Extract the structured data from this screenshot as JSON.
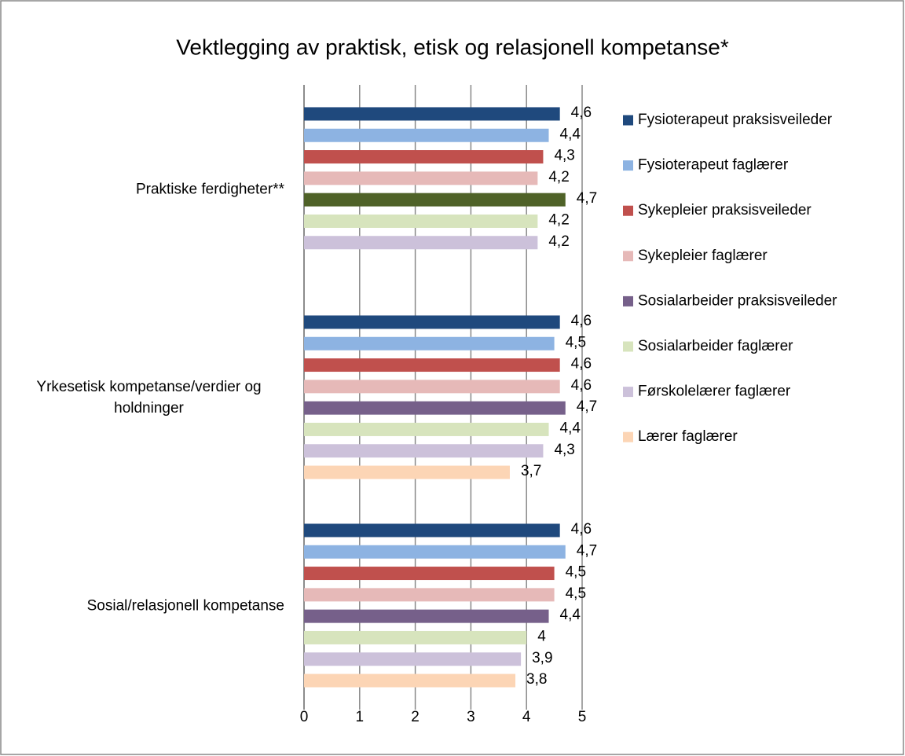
{
  "chart_data": {
    "type": "bar",
    "orientation": "horizontal",
    "title": "Vektlegging av praktisk, etisk og relasjonell kompetanse*",
    "categories": [
      "Praktiske ferdigheter**",
      "Yrkesetisk kompetanse/verdier og holdninger",
      "Sosial/relasjonell kompetanse"
    ],
    "series": [
      {
        "name": "Fysioterapeut praksisveileder",
        "color": "#1f497d",
        "values": [
          4.6,
          4.6,
          4.6
        ],
        "value_labels": [
          "4,6",
          "4,6",
          "4,6"
        ]
      },
      {
        "name": "Fysioterapeut faglærer",
        "color": "#8db3e2",
        "values": [
          4.4,
          4.5,
          4.7
        ],
        "value_labels": [
          "4,4",
          "4,5",
          "4,7"
        ]
      },
      {
        "name": "Sykepleier praksisveileder",
        "color": "#c0504d",
        "values": [
          4.3,
          4.6,
          4.5
        ],
        "value_labels": [
          "4,3",
          "4,6",
          "4,5"
        ]
      },
      {
        "name": "Sykepleier faglærer",
        "color": "#e6b9b8",
        "values": [
          4.2,
          4.6,
          4.5
        ],
        "value_labels": [
          "4,2",
          "4,6",
          "4,5"
        ]
      },
      {
        "name": "Sosialarbeider praksisveileder",
        "color": "#76608a",
        "point_colors": [
          "#4f6228",
          "#76608a",
          "#76608a"
        ],
        "values": [
          4.7,
          4.7,
          4.4
        ],
        "value_labels": [
          "4,7",
          "4,7",
          "4,4"
        ]
      },
      {
        "name": "Sosialarbeider faglærer",
        "color": "#d7e4bd",
        "values": [
          4.2,
          4.4,
          4
        ],
        "value_labels": [
          "4,2",
          "4,4",
          "4"
        ]
      },
      {
        "name": "Førskolelærer faglærer",
        "color": "#ccc1da",
        "values": [
          4.2,
          4.3,
          3.9
        ],
        "value_labels": [
          "4,2",
          "4,3",
          "3,9"
        ]
      },
      {
        "name": "Lærer faglærer",
        "color": "#fcd5b5",
        "values": [
          null,
          3.7,
          3.8
        ],
        "value_labels": [
          null,
          "3,7",
          "3,8"
        ]
      }
    ],
    "xlim": [
      0,
      5
    ],
    "xticks": [
      0,
      1,
      2,
      3,
      4,
      5
    ],
    "grid": true,
    "legend": "right"
  }
}
